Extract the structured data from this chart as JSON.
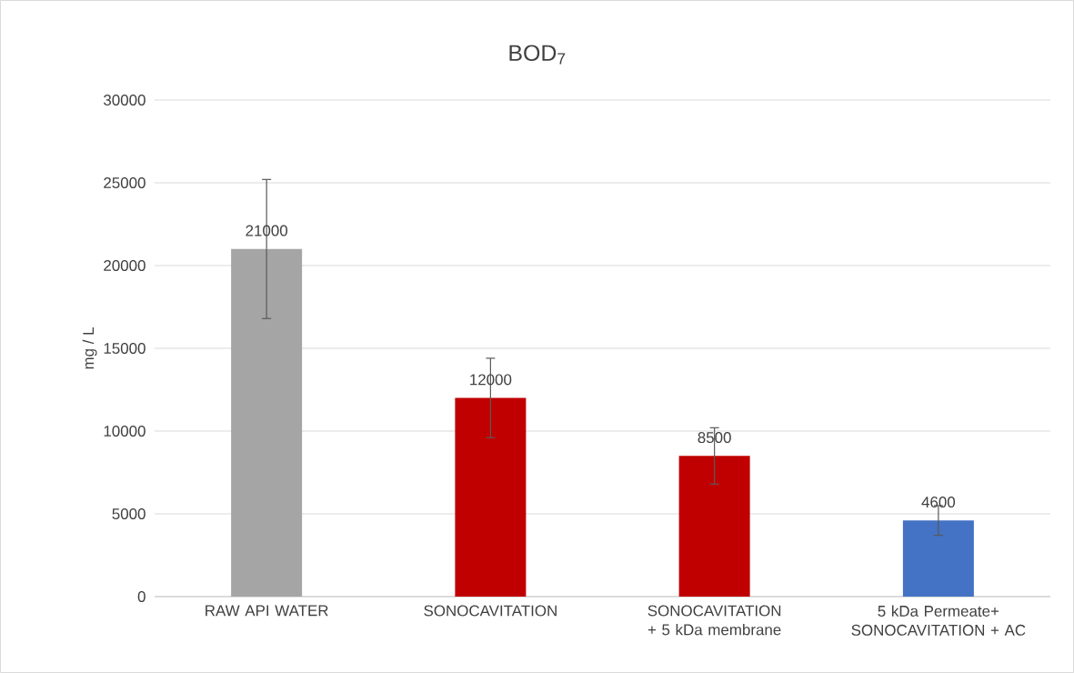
{
  "chart_data": {
    "type": "bar",
    "title": "BOD$_{7}$",
    "ylabel": "mg / L",
    "categories": [
      "RAW API WATER",
      "SONOCAVITATION",
      "SONOCAVITATION + 5 kDa membrane",
      "5 kDa Permeate+ SONOCAVITATION + AC"
    ],
    "values": [
      21000,
      12000,
      8500,
      4600
    ],
    "colors": [
      "#a5a5a5",
      "#c00000",
      "#c00000",
      "#4472c4"
    ],
    "errors": [
      4200,
      2400,
      1700,
      900
    ],
    "data_labels": true,
    "ylim": [
      0,
      30000
    ],
    "yticks": [
      0,
      5000,
      10000,
      15000,
      20000,
      25000,
      30000
    ],
    "grid": "y"
  }
}
